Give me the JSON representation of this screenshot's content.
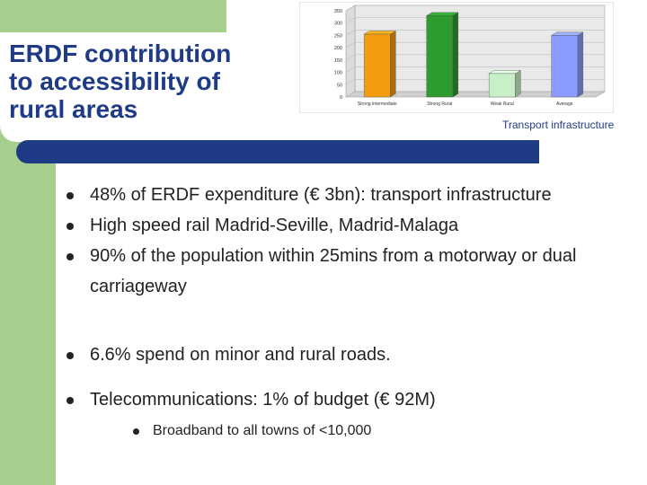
{
  "slide": {
    "title": "ERDF contribution\n to accessibility of\nrural areas",
    "caption": "Transport infrastructure",
    "bullets_group": [
      "48% of ERDF expenditure (€ 3bn): transport infrastructure",
      "High speed rail Madrid-Seville, Madrid-Malaga",
      "90% of the population within 25mins from a motorway or dual carriageway"
    ],
    "bullet_roads": "6.6% spend on minor and rural roads.",
    "bullet_telecom": "Telecommunications: 1% of budget (€ 92M)",
    "sub_bullet": "Broadband to all towns of <10,000"
  },
  "colors": {
    "title_blue": "#1f3b86",
    "green": "#a6cf8e",
    "bar_orange": "#f39c12",
    "bar_green": "#2e9b2e",
    "bar_lightgreen": "#c8f0c8",
    "bar_blue": "#8a9cff"
  },
  "chart_data": {
    "type": "bar",
    "categories": [
      "Strong Intermediate",
      "Strong Rural",
      "Weak Rural",
      "Average"
    ],
    "values": [
      255,
      330,
      95,
      250
    ],
    "bar_colors": [
      "#f39c12",
      "#2e9b2e",
      "#c8f0c8",
      "#8a9cff"
    ],
    "ylim": [
      0,
      350
    ],
    "yticks": [
      0,
      50,
      100,
      150,
      200,
      250,
      300,
      350
    ],
    "title": "",
    "xlabel": "",
    "ylabel": "",
    "style": "3d",
    "grid": true,
    "legend": "none"
  }
}
